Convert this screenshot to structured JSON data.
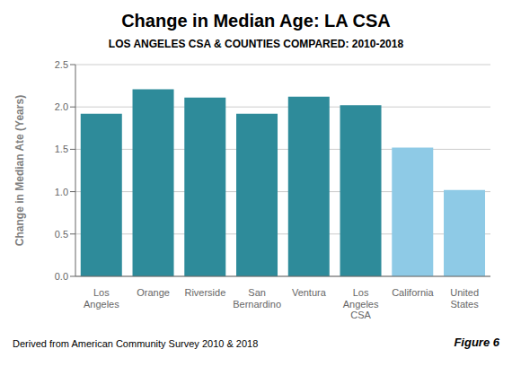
{
  "chart_data": {
    "type": "bar",
    "title": "Change in Median Age: LA CSA",
    "subtitle": "LOS ANGELES CSA & COUNTIES COMPARED: 2010-2018",
    "categories": [
      "Los\nAngeles",
      "Orange",
      "Riverside",
      "San\nBernardino",
      "Ventura",
      "Los\nAngeles\nCSA",
      "California",
      "United\nStates"
    ],
    "values": [
      1.92,
      2.21,
      2.11,
      1.92,
      2.12,
      2.02,
      1.52,
      1.02
    ],
    "colors": [
      "#2e8b9a",
      "#2e8b9a",
      "#2e8b9a",
      "#2e8b9a",
      "#2e8b9a",
      "#2e8b9a",
      "#8ecae6",
      "#8ecae6"
    ],
    "ylabel": "Change in Median Ate (Years)",
    "ylim": [
      0,
      2.5
    ],
    "yticks": [
      {
        "value": 0.0,
        "label": "0.0"
      },
      0.5,
      {
        "value": 1.0,
        "label": "1.0"
      },
      1.5,
      {
        "value": 2.0,
        "label": "2.0"
      },
      2.5
    ],
    "grid": true,
    "annotations": [
      "Derived from American Community Survey 2010 & 2018",
      "Figure 6"
    ]
  }
}
